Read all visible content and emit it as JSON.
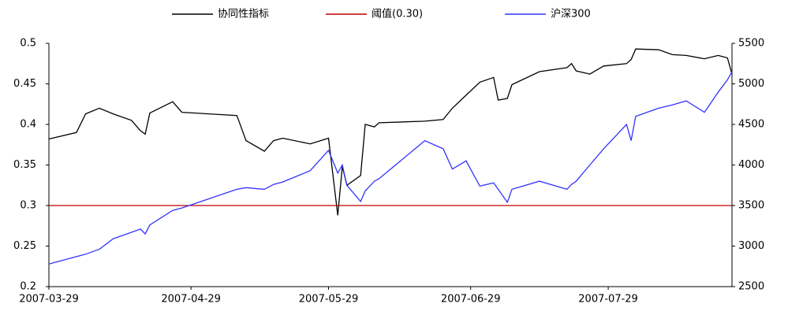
{
  "chart_data": {
    "type": "line",
    "x": [
      "2007-03-29",
      "2007-04-04",
      "2007-04-06",
      "2007-04-09",
      "2007-04-12",
      "2007-04-16",
      "2007-04-18",
      "2007-04-19",
      "2007-04-20",
      "2007-04-25",
      "2007-04-27",
      "2007-05-09",
      "2007-05-11",
      "2007-05-15",
      "2007-05-17",
      "2007-05-19",
      "2007-05-25",
      "2007-05-29",
      "2007-05-31",
      "2007-06-01",
      "2007-06-02",
      "2007-06-05",
      "2007-06-06",
      "2007-06-08",
      "2007-06-09",
      "2007-06-19",
      "2007-06-23",
      "2007-06-25",
      "2007-06-28",
      "2007-07-01",
      "2007-07-04",
      "2007-07-05",
      "2007-07-07",
      "2007-07-08",
      "2007-07-14",
      "2007-07-20",
      "2007-07-21",
      "2007-07-22",
      "2007-07-25",
      "2007-07-28",
      "2007-08-02",
      "2007-08-03",
      "2007-08-04",
      "2007-08-09",
      "2007-08-12",
      "2007-08-15",
      "2007-08-19",
      "2007-08-22",
      "2007-08-24",
      "2007-08-25"
    ],
    "series": [
      {
        "name": "协同性指标",
        "color": "#000000",
        "values": [
          0.382,
          0.39,
          0.413,
          0.42,
          0.413,
          0.405,
          0.392,
          0.388,
          0.414,
          0.428,
          0.415,
          0.411,
          0.38,
          0.367,
          0.38,
          0.383,
          0.376,
          0.383,
          0.288,
          0.348,
          0.325,
          0.337,
          0.4,
          0.397,
          0.402,
          0.404,
          0.406,
          0.42,
          0.436,
          0.452,
          0.458,
          0.43,
          0.432,
          0.449,
          0.465,
          0.47,
          0.475,
          0.466,
          0.462,
          0.472,
          0.475,
          0.48,
          0.493,
          0.492,
          0.486,
          0.485,
          0.481,
          0.485,
          0.482,
          0.462
        ]
      },
      {
        "name": "阈值(0.30)",
        "color": "#c00000",
        "values": [
          0.3,
          0.3,
          0.3,
          0.3,
          0.3,
          0.3,
          0.3,
          0.3,
          0.3,
          0.3,
          0.3,
          0.3,
          0.3,
          0.3,
          0.3,
          0.3,
          0.3,
          0.3,
          0.3,
          0.3,
          0.3,
          0.3,
          0.3,
          0.3,
          0.3,
          0.3,
          0.3,
          0.3,
          0.3,
          0.3,
          0.3,
          0.3,
          0.3,
          0.3,
          0.3,
          0.3,
          0.3,
          0.3,
          0.3,
          0.3,
          0.3,
          0.3,
          0.3,
          0.3,
          0.3,
          0.3,
          0.3,
          0.3,
          0.3,
          0.3
        ]
      },
      {
        "name": "沪深300",
        "color": "#3333ff",
        "axis": "y2",
        "values": [
          2780,
          2870,
          2900,
          2960,
          3090,
          3170,
          3210,
          3150,
          3260,
          3440,
          3470,
          3700,
          3720,
          3700,
          3760,
          3790,
          3930,
          4180,
          3900,
          4000,
          3750,
          3550,
          3680,
          3800,
          3830,
          4300,
          4200,
          3950,
          4050,
          3740,
          3780,
          3700,
          3540,
          3700,
          3800,
          3700,
          3760,
          3800,
          4000,
          4200,
          4500,
          4300,
          4600,
          4700,
          4740,
          4790,
          4650,
          4900,
          5050,
          5150
        ]
      }
    ],
    "xlim": [
      "2007-03-29",
      "2007-08-25"
    ],
    "xticks": [
      "2007-03-29",
      "2007-04-29",
      "2007-05-29",
      "2007-06-29",
      "2007-07-29"
    ],
    "ylim": [
      0.2,
      0.5
    ],
    "yticks": [
      0.2,
      0.25,
      0.3,
      0.35,
      0.4,
      0.45,
      0.5
    ],
    "y2lim": [
      2500,
      5500
    ],
    "y2ticks": [
      2500,
      3000,
      3500,
      4000,
      4500,
      5000,
      5500
    ],
    "legend": "top"
  }
}
